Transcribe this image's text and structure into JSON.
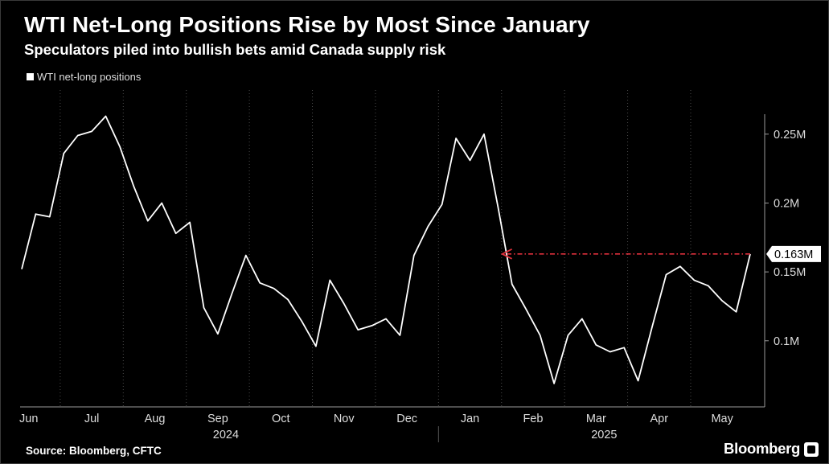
{
  "header": {
    "title": "WTI Net-Long Positions Rise by Most Since January",
    "subtitle": "Speculators piled into bullish bets amid Canada supply risk"
  },
  "footer": {
    "source": "Source: Bloomberg, CFTC",
    "brand": "Bloomberg"
  },
  "chart_data": {
    "type": "line",
    "series": [
      {
        "name": "WTI net-long positions",
        "color": "#ffffff",
        "values": [
          0.152,
          0.192,
          0.19,
          0.236,
          0.249,
          0.252,
          0.263,
          0.241,
          0.212,
          0.187,
          0.2,
          0.178,
          0.186,
          0.124,
          0.105,
          0.134,
          0.162,
          0.142,
          0.138,
          0.13,
          0.114,
          0.096,
          0.144,
          0.127,
          0.108,
          0.111,
          0.116,
          0.104,
          0.162,
          0.183,
          0.199,
          0.247,
          0.231,
          0.25,
          0.197,
          0.141,
          0.123,
          0.104,
          0.069,
          0.104,
          0.116,
          0.097,
          0.092,
          0.095,
          0.071,
          0.11,
          0.148,
          0.154,
          0.144,
          0.14,
          0.129,
          0.121,
          0.163
        ]
      }
    ],
    "y_ticks": [
      0.1,
      0.15,
      0.2,
      0.25
    ],
    "y_tick_labels": [
      "0.1M",
      "0.15M",
      "0.2M",
      "0.25M"
    ],
    "ylim": [
      0.052,
      0.282
    ],
    "x_tick_labels": [
      "Jun",
      "Jul",
      "Aug",
      "Sep",
      "Oct",
      "Nov",
      "Dec",
      "Jan",
      "Feb",
      "Mar",
      "Apr",
      "May"
    ],
    "x_tick_week_index": [
      0.5,
      5,
      9.5,
      14,
      18.5,
      23,
      27.5,
      32,
      36.5,
      41,
      45.5,
      50
    ],
    "year_labels": [
      "2024",
      "2025"
    ],
    "year_label_week_index": [
      14,
      41
    ],
    "last_value_label": "0.163M",
    "annotation": {
      "type": "arrow",
      "color": "#e0303c",
      "y": 0.163,
      "from_week_index": 52,
      "to_week_index": 34.3
    },
    "grid": "vertical",
    "legend_position": "top-left"
  }
}
